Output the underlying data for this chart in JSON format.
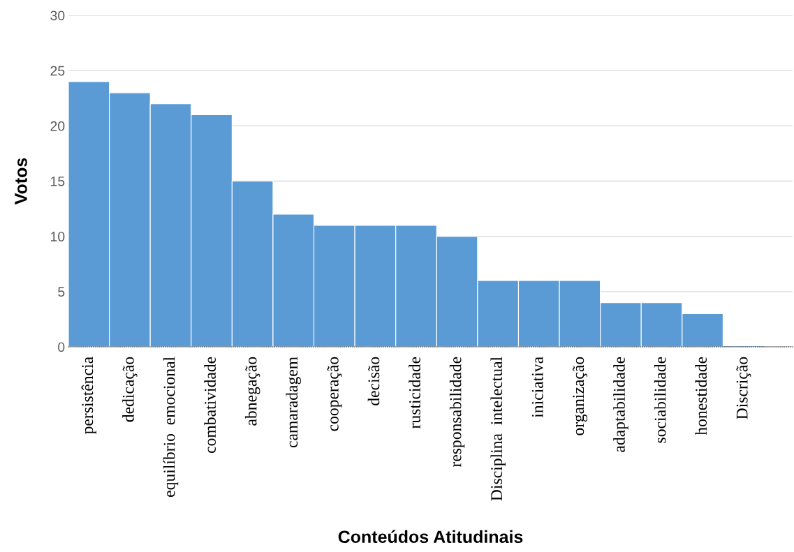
{
  "chart_data": {
    "type": "bar",
    "xlabel": "Conteúdos Atitudinais",
    "ylabel": "Votos",
    "categories": [
      "persistência",
      "dedicação",
      "equilíbrio  emocional",
      "combatividade",
      "abnegação",
      "camaradagem",
      "cooperação",
      "decisão",
      "rusticidade",
      "responsabilidade",
      "Disciplina  intelectual",
      "iniciativa",
      "organização",
      "adaptabilidade",
      "sociabilidade",
      "honestidade",
      "Discrição"
    ],
    "values": [
      24,
      23,
      22,
      21,
      15,
      12,
      11,
      11,
      11,
      10,
      6,
      6,
      6,
      4,
      4,
      3,
      0
    ],
    "color": "#5b9bd5",
    "ylim": [
      0,
      30
    ],
    "yticks": [
      0,
      5,
      10,
      15,
      20,
      25,
      30
    ],
    "grid": "y"
  }
}
